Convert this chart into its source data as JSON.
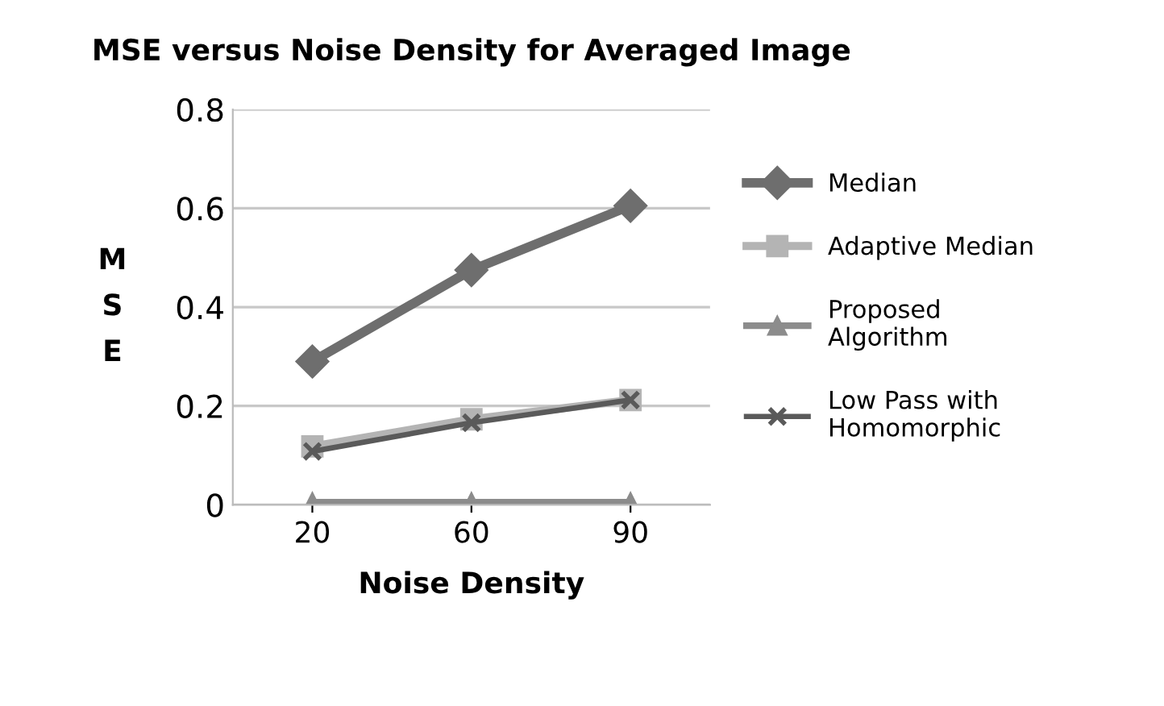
{
  "chart_data": {
    "type": "line",
    "title": "MSE versus Noise Density for Averaged Image",
    "xlabel": "Noise Density",
    "ylabel": "MSE",
    "categories": [
      "20",
      "60",
      "90"
    ],
    "series": [
      {
        "name": "Median",
        "color": "#6e6e6e",
        "marker": "diamond",
        "values": [
          0.29,
          0.475,
          0.605
        ]
      },
      {
        "name": "Adaptive Median",
        "color": "#b4b4b4",
        "marker": "square",
        "values": [
          0.118,
          0.173,
          0.212
        ]
      },
      {
        "name": "Proposed Algorithm",
        "color": "#8c8c8c",
        "marker": "triangle",
        "values": [
          0.005,
          0.005,
          0.005
        ]
      },
      {
        "name": "Low Pass with Homomorphic",
        "color": "#5a5a5a",
        "marker": "cross",
        "values": [
          0.108,
          0.166,
          0.212
        ]
      }
    ],
    "ylim": [
      0,
      0.8
    ],
    "yticks": [
      0,
      0.2,
      0.4,
      0.6,
      0.8
    ],
    "grid": "y",
    "legend": "right"
  }
}
